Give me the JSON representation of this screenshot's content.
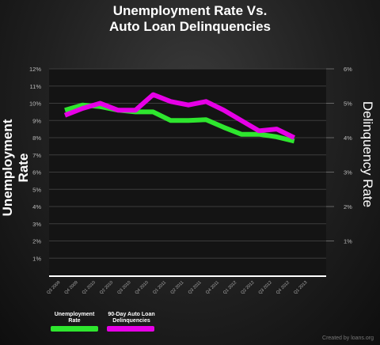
{
  "title_line1": "Unemployment Rate Vs.",
  "title_line2": "Auto Loan Delinquencies",
  "credit": "Created by loans.org",
  "colors": {
    "unemployment": "#2ee62e",
    "delinquency": "#e600e6",
    "plot_bg": "#141414"
  },
  "chart_data": {
    "type": "line",
    "title": "Unemployment Rate Vs. Auto Loan Delinquencies",
    "categories": [
      "Q3 2009",
      "Q4 2009",
      "Q1 2010",
      "Q2 2010",
      "Q3 2010",
      "Q4 2010",
      "Q1 2011",
      "Q2 2011",
      "Q3 2011",
      "Q4 2011",
      "Q1 2012",
      "Q2 2012",
      "Q3 2012",
      "Q4 2012",
      "Q1 2013"
    ],
    "ylabel_left": "Unemployment Rate",
    "ylabel_right": "Delinquency Rate",
    "ylim_left": [
      0,
      12
    ],
    "ylim_right": [
      0,
      6
    ],
    "yticks_left": [
      "1%",
      "2%",
      "3%",
      "4%",
      "5%",
      "6%",
      "7%",
      "8%",
      "9%",
      "10%",
      "11%",
      "12%"
    ],
    "yticks_right": [
      "1%",
      "2%",
      "3%",
      "4%",
      "5%",
      "6%"
    ],
    "grid": true,
    "legend_position": "bottom-left",
    "series": [
      {
        "name": "Unemployment Rate",
        "axis": "left",
        "values": [
          9.6,
          9.9,
          9.8,
          9.6,
          9.5,
          9.5,
          9.0,
          9.0,
          9.05,
          8.6,
          8.2,
          8.2,
          8.05,
          7.8,
          null
        ]
      },
      {
        "name": "90-Day Auto Loan Delinquencies",
        "axis": "right",
        "values": [
          4.65,
          4.85,
          5.0,
          4.8,
          4.8,
          5.25,
          5.05,
          4.95,
          5.05,
          4.8,
          4.5,
          4.2,
          4.25,
          4.0,
          null
        ]
      }
    ]
  }
}
